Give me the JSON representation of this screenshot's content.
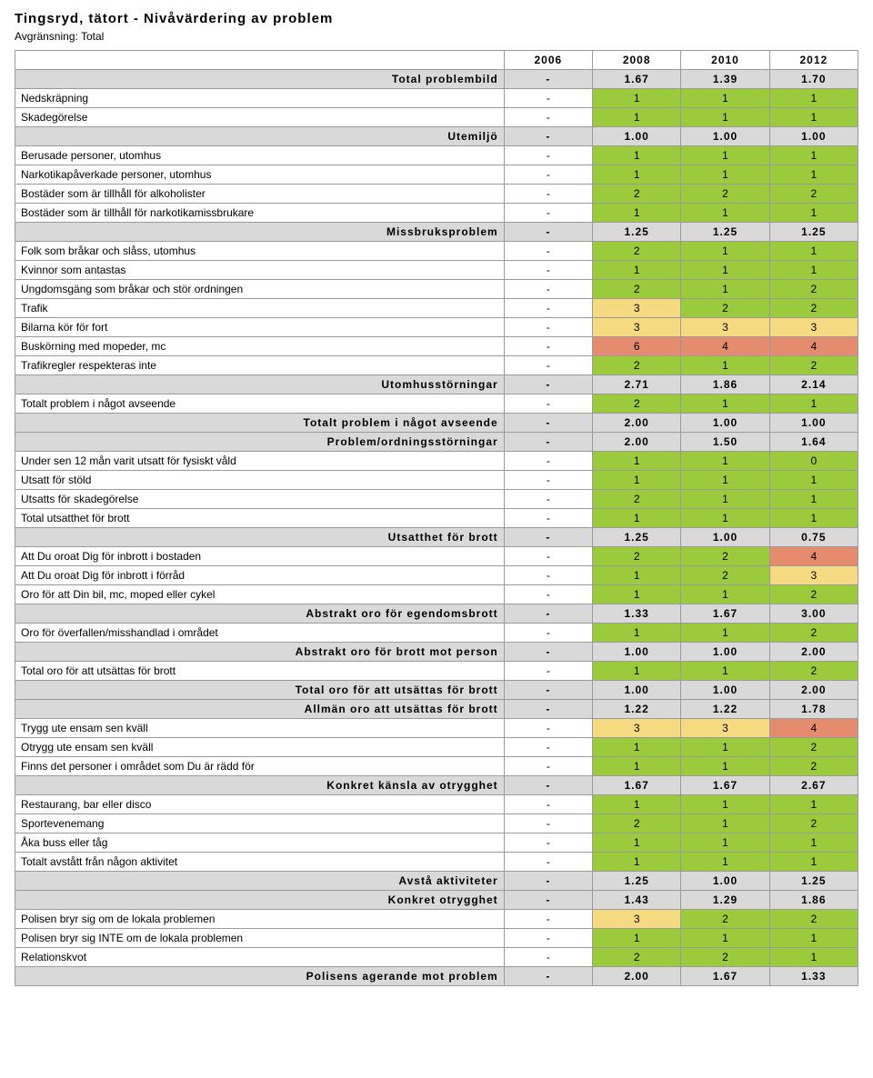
{
  "title": "Tingsryd, tätort - Nivåvärdering av problem",
  "subtitle": "Avgränsning: Total",
  "years": [
    "2006",
    "2008",
    "2010",
    "2012"
  ],
  "colors": {
    "green": "#9bcb3c",
    "yellow": "#f5da81",
    "red": "#e58c6f",
    "gray": "#d9d9d9",
    "white": "#ffffff"
  },
  "rows": [
    {
      "type": "section",
      "label": "Total problembild",
      "v": [
        "-",
        "1.67",
        "1.39",
        "1.70"
      ]
    },
    {
      "type": "data",
      "label": "Nedskräpning",
      "v": [
        "-",
        "1",
        "1",
        "1"
      ],
      "c": [
        "",
        "g",
        "g",
        "g"
      ]
    },
    {
      "type": "data",
      "label": "Skadegörelse",
      "v": [
        "-",
        "1",
        "1",
        "1"
      ],
      "c": [
        "",
        "g",
        "g",
        "g"
      ]
    },
    {
      "type": "section",
      "label": "Utemiljö",
      "v": [
        "-",
        "1.00",
        "1.00",
        "1.00"
      ]
    },
    {
      "type": "data",
      "label": "Berusade personer, utomhus",
      "v": [
        "-",
        "1",
        "1",
        "1"
      ],
      "c": [
        "",
        "g",
        "g",
        "g"
      ]
    },
    {
      "type": "data",
      "label": "Narkotikapåverkade personer, utomhus",
      "v": [
        "-",
        "1",
        "1",
        "1"
      ],
      "c": [
        "",
        "g",
        "g",
        "g"
      ]
    },
    {
      "type": "data",
      "label": "Bostäder som är tillhåll för alkoholister",
      "v": [
        "-",
        "2",
        "2",
        "2"
      ],
      "c": [
        "",
        "g",
        "g",
        "g"
      ]
    },
    {
      "type": "data",
      "label": "Bostäder som är tillhåll för narkotikamissbrukare",
      "v": [
        "-",
        "1",
        "1",
        "1"
      ],
      "c": [
        "",
        "g",
        "g",
        "g"
      ]
    },
    {
      "type": "section",
      "label": "Missbruksproblem",
      "v": [
        "-",
        "1.25",
        "1.25",
        "1.25"
      ]
    },
    {
      "type": "data",
      "label": "Folk som bråkar och slåss, utomhus",
      "v": [
        "-",
        "2",
        "1",
        "1"
      ],
      "c": [
        "",
        "g",
        "g",
        "g"
      ]
    },
    {
      "type": "data",
      "label": "Kvinnor som antastas",
      "v": [
        "-",
        "1",
        "1",
        "1"
      ],
      "c": [
        "",
        "g",
        "g",
        "g"
      ]
    },
    {
      "type": "data",
      "label": "Ungdomsgäng som bråkar och stör ordningen",
      "v": [
        "-",
        "2",
        "1",
        "2"
      ],
      "c": [
        "",
        "g",
        "g",
        "g"
      ]
    },
    {
      "type": "data",
      "label": "Trafik",
      "v": [
        "-",
        "3",
        "2",
        "2"
      ],
      "c": [
        "",
        "y",
        "g",
        "g"
      ]
    },
    {
      "type": "data",
      "label": "Bilarna kör för fort",
      "v": [
        "-",
        "3",
        "3",
        "3"
      ],
      "c": [
        "",
        "y",
        "y",
        "y"
      ]
    },
    {
      "type": "data",
      "label": "Buskörning med mopeder, mc",
      "v": [
        "-",
        "6",
        "4",
        "4"
      ],
      "c": [
        "",
        "r",
        "r",
        "r"
      ]
    },
    {
      "type": "data",
      "label": "Trafikregler respekteras inte",
      "v": [
        "-",
        "2",
        "1",
        "2"
      ],
      "c": [
        "",
        "g",
        "g",
        "g"
      ]
    },
    {
      "type": "section",
      "label": "Utomhusstörningar",
      "v": [
        "-",
        "2.71",
        "1.86",
        "2.14"
      ]
    },
    {
      "type": "data",
      "label": "Totalt problem i något avseende",
      "v": [
        "-",
        "2",
        "1",
        "1"
      ],
      "c": [
        "",
        "g",
        "g",
        "g"
      ]
    },
    {
      "type": "section",
      "label": "Totalt problem i något avseende",
      "v": [
        "-",
        "2.00",
        "1.00",
        "1.00"
      ]
    },
    {
      "type": "section",
      "label": "Problem/ordningsstörningar",
      "v": [
        "-",
        "2.00",
        "1.50",
        "1.64"
      ]
    },
    {
      "type": "data",
      "label": "Under sen 12 mån varit utsatt för fysiskt våld",
      "v": [
        "-",
        "1",
        "1",
        "0"
      ],
      "c": [
        "",
        "g",
        "g",
        "g"
      ]
    },
    {
      "type": "data",
      "label": "Utsatt för stöld",
      "v": [
        "-",
        "1",
        "1",
        "1"
      ],
      "c": [
        "",
        "g",
        "g",
        "g"
      ]
    },
    {
      "type": "data",
      "label": "Utsatts för skadegörelse",
      "v": [
        "-",
        "2",
        "1",
        "1"
      ],
      "c": [
        "",
        "g",
        "g",
        "g"
      ]
    },
    {
      "type": "data",
      "label": "Total utsatthet för brott",
      "v": [
        "-",
        "1",
        "1",
        "1"
      ],
      "c": [
        "",
        "g",
        "g",
        "g"
      ]
    },
    {
      "type": "section",
      "label": "Utsatthet för brott",
      "v": [
        "-",
        "1.25",
        "1.00",
        "0.75"
      ]
    },
    {
      "type": "data",
      "label": "Att Du oroat Dig för inbrott i bostaden",
      "v": [
        "-",
        "2",
        "2",
        "4"
      ],
      "c": [
        "",
        "g",
        "g",
        "r"
      ]
    },
    {
      "type": "data",
      "label": "Att Du oroat Dig för inbrott i förråd",
      "v": [
        "-",
        "1",
        "2",
        "3"
      ],
      "c": [
        "",
        "g",
        "g",
        "y"
      ]
    },
    {
      "type": "data",
      "label": "Oro för att Din bil, mc, moped eller cykel",
      "v": [
        "-",
        "1",
        "1",
        "2"
      ],
      "c": [
        "",
        "g",
        "g",
        "g"
      ]
    },
    {
      "type": "section",
      "label": "Abstrakt oro för egendomsbrott",
      "v": [
        "-",
        "1.33",
        "1.67",
        "3.00"
      ]
    },
    {
      "type": "data",
      "label": "Oro för överfallen/misshandlad i området",
      "v": [
        "-",
        "1",
        "1",
        "2"
      ],
      "c": [
        "",
        "g",
        "g",
        "g"
      ]
    },
    {
      "type": "section",
      "label": "Abstrakt oro för brott mot person",
      "v": [
        "-",
        "1.00",
        "1.00",
        "2.00"
      ]
    },
    {
      "type": "data",
      "label": "Total oro för att utsättas för brott",
      "v": [
        "-",
        "1",
        "1",
        "2"
      ],
      "c": [
        "",
        "g",
        "g",
        "g"
      ]
    },
    {
      "type": "section",
      "label": "Total oro för att utsättas för brott",
      "v": [
        "-",
        "1.00",
        "1.00",
        "2.00"
      ]
    },
    {
      "type": "section",
      "label": "Allmän oro att utsättas för brott",
      "v": [
        "-",
        "1.22",
        "1.22",
        "1.78"
      ]
    },
    {
      "type": "data",
      "label": "Trygg ute ensam sen kväll",
      "v": [
        "-",
        "3",
        "3",
        "4"
      ],
      "c": [
        "",
        "y",
        "y",
        "r"
      ]
    },
    {
      "type": "data",
      "label": "Otrygg ute ensam sen kväll",
      "v": [
        "-",
        "1",
        "1",
        "2"
      ],
      "c": [
        "",
        "g",
        "g",
        "g"
      ]
    },
    {
      "type": "data",
      "label": "Finns det personer i området som Du är rädd för",
      "v": [
        "-",
        "1",
        "1",
        "2"
      ],
      "c": [
        "",
        "g",
        "g",
        "g"
      ]
    },
    {
      "type": "section",
      "label": "Konkret känsla av otrygghet",
      "v": [
        "-",
        "1.67",
        "1.67",
        "2.67"
      ]
    },
    {
      "type": "data",
      "label": "Restaurang, bar eller disco",
      "v": [
        "-",
        "1",
        "1",
        "1"
      ],
      "c": [
        "",
        "g",
        "g",
        "g"
      ]
    },
    {
      "type": "data",
      "label": "Sportevenemang",
      "v": [
        "-",
        "2",
        "1",
        "2"
      ],
      "c": [
        "",
        "g",
        "g",
        "g"
      ]
    },
    {
      "type": "data",
      "label": "Åka buss eller tåg",
      "v": [
        "-",
        "1",
        "1",
        "1"
      ],
      "c": [
        "",
        "g",
        "g",
        "g"
      ]
    },
    {
      "type": "data",
      "label": "Totalt avstått från någon aktivitet",
      "v": [
        "-",
        "1",
        "1",
        "1"
      ],
      "c": [
        "",
        "g",
        "g",
        "g"
      ]
    },
    {
      "type": "section",
      "label": "Avstå aktiviteter",
      "v": [
        "-",
        "1.25",
        "1.00",
        "1.25"
      ]
    },
    {
      "type": "section",
      "label": "Konkret otrygghet",
      "v": [
        "-",
        "1.43",
        "1.29",
        "1.86"
      ]
    },
    {
      "type": "data",
      "label": "Polisen bryr sig om de lokala problemen",
      "v": [
        "-",
        "3",
        "2",
        "2"
      ],
      "c": [
        "",
        "y",
        "g",
        "g"
      ]
    },
    {
      "type": "data",
      "label": "Polisen bryr sig INTE om de lokala problemen",
      "v": [
        "-",
        "1",
        "1",
        "1"
      ],
      "c": [
        "",
        "g",
        "g",
        "g"
      ]
    },
    {
      "type": "data",
      "label": "Relationskvot",
      "v": [
        "-",
        "2",
        "2",
        "1"
      ],
      "c": [
        "",
        "g",
        "g",
        "g"
      ]
    },
    {
      "type": "section",
      "label": "Polisens agerande mot problem",
      "v": [
        "-",
        "2.00",
        "1.67",
        "1.33"
      ]
    }
  ]
}
